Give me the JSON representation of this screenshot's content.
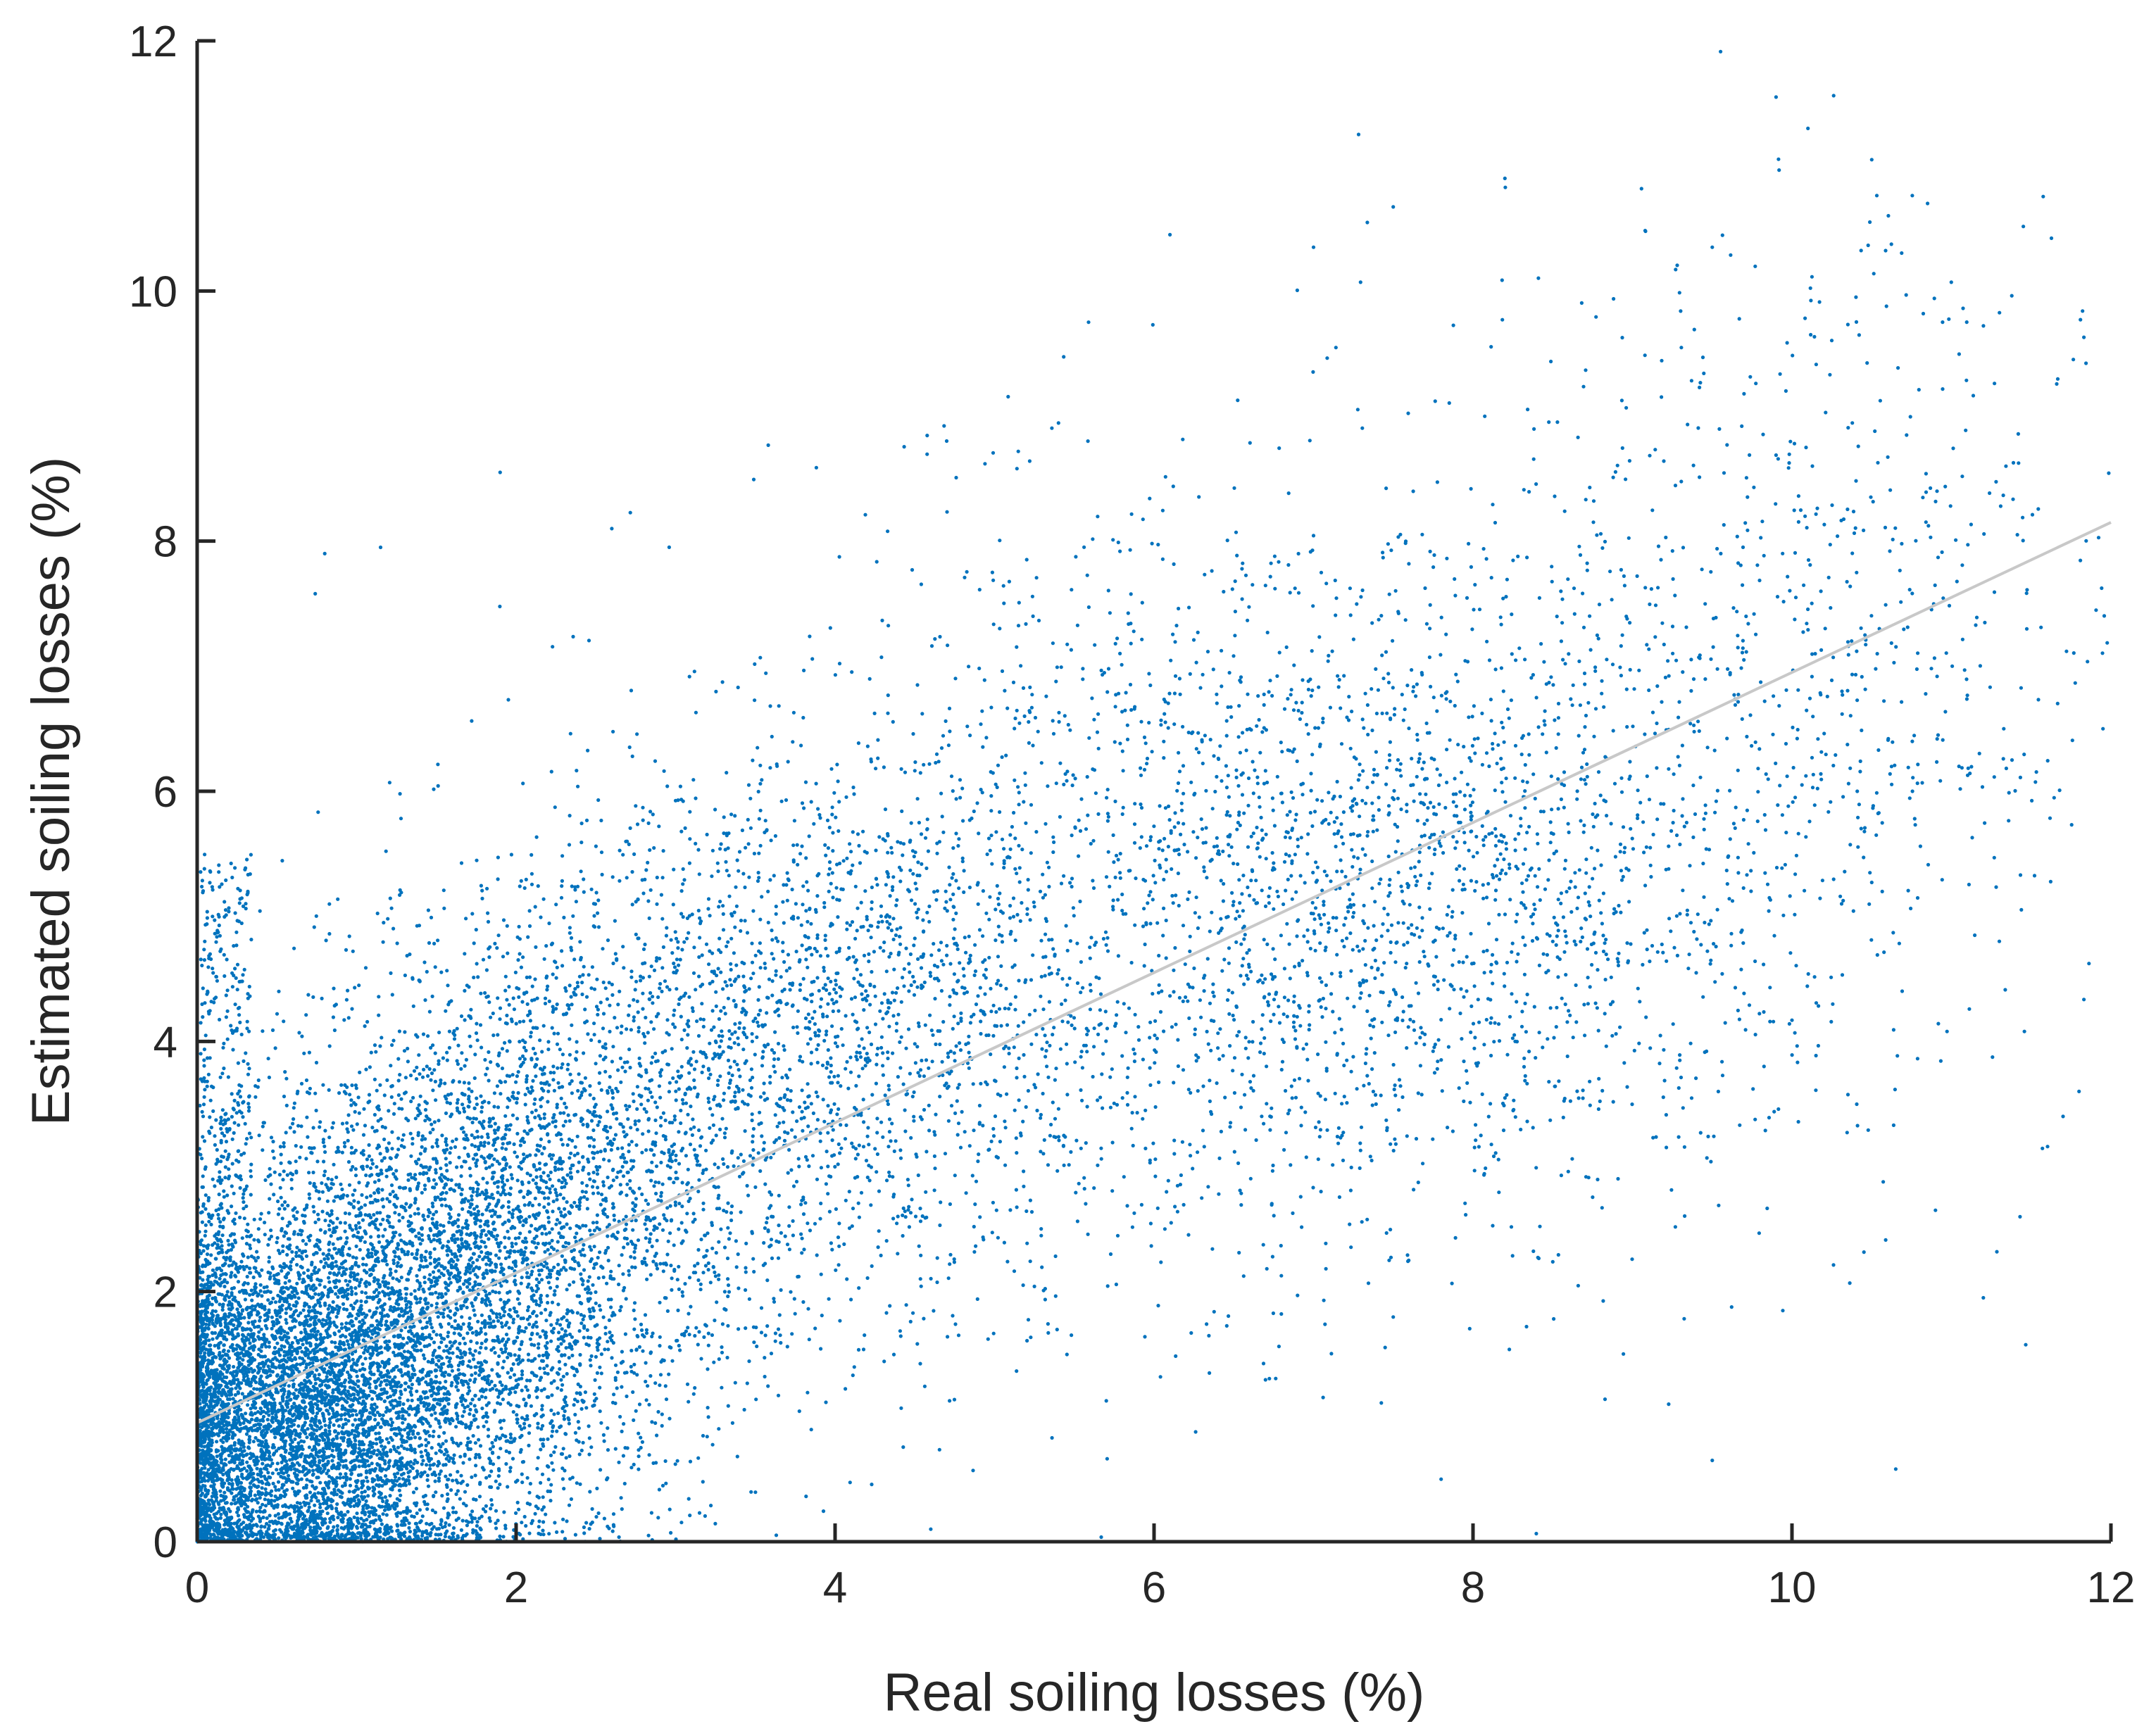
{
  "chart_data": {
    "type": "scatter",
    "xlabel": "Real soiling losses (%)",
    "ylabel": "Estimated soiling losses (%)",
    "xlim": [
      0,
      12
    ],
    "ylim": [
      0,
      12
    ],
    "xticks": [
      0,
      2,
      4,
      6,
      8,
      10,
      12
    ],
    "yticks": [
      0,
      2,
      4,
      6,
      8,
      10,
      12
    ],
    "xtick_labels": [
      "0",
      "2",
      "4",
      "6",
      "8",
      "10",
      "12"
    ],
    "ytick_labels": [
      "0",
      "2",
      "4",
      "6",
      "8",
      "10",
      "12"
    ],
    "grid": false,
    "point_color": "#0072BD",
    "fit_line_color": "#C8C8C8",
    "fit_line": {
      "x": [
        0,
        12
      ],
      "y": [
        0.95,
        8.15
      ]
    },
    "clusters": [
      {
        "cx": 0.6,
        "cy": 1.0,
        "sx": 0.55,
        "sy": 0.75,
        "n": 5200
      },
      {
        "cx": 1.6,
        "cy": 2.0,
        "sx": 0.7,
        "sy": 1.0,
        "n": 3600
      },
      {
        "cx": 2.6,
        "cy": 3.4,
        "sx": 0.9,
        "sy": 1.2,
        "n": 1600
      },
      {
        "cx": 4.1,
        "cy": 4.2,
        "sx": 0.9,
        "sy": 1.1,
        "n": 1400
      },
      {
        "cx": 6.0,
        "cy": 5.2,
        "sx": 1.2,
        "sy": 1.7,
        "n": 1200
      },
      {
        "cx": 7.4,
        "cy": 5.2,
        "sx": 0.9,
        "sy": 1.2,
        "n": 1100
      },
      {
        "cx": 9.2,
        "cy": 5.8,
        "sx": 1.0,
        "sy": 1.8,
        "n": 800
      },
      {
        "cx": 10.6,
        "cy": 7.5,
        "sx": 0.8,
        "sy": 1.6,
        "n": 350
      }
    ],
    "notable_points": [
      {
        "x": 9.9,
        "y": 11.55
      },
      {
        "x": 10.1,
        "y": 11.3
      },
      {
        "x": 10.5,
        "y": 11.05
      },
      {
        "x": 8.2,
        "y": 10.9
      },
      {
        "x": 6.1,
        "y": 10.45
      },
      {
        "x": 7.0,
        "y": 10.35
      },
      {
        "x": 9.5,
        "y": 10.35
      },
      {
        "x": 11.95,
        "y": 6.5
      },
      {
        "x": 11.8,
        "y": 3.6
      },
      {
        "x": 11.7,
        "y": 3.4
      },
      {
        "x": 11.2,
        "y": 1.95
      },
      {
        "x": 9.5,
        "y": 0.65
      },
      {
        "x": 7.8,
        "y": 0.5
      },
      {
        "x": 4.6,
        "y": 0.1
      },
      {
        "x": 1.9,
        "y": 8.55
      },
      {
        "x": 4.7,
        "y": 8.8
      },
      {
        "x": 0.8,
        "y": 7.9
      },
      {
        "x": 1.15,
        "y": 7.95
      },
      {
        "x": 2.6,
        "y": 8.1
      },
      {
        "x": 11.3,
        "y": 4.8
      },
      {
        "x": 10.9,
        "y": 2.65
      }
    ]
  }
}
